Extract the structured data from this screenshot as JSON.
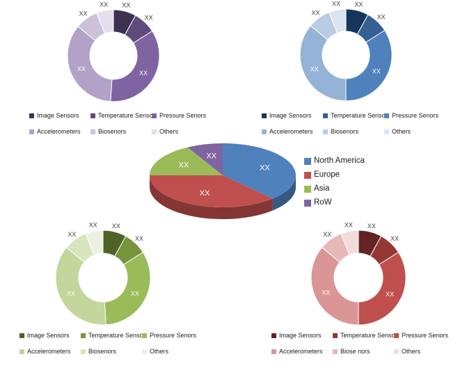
{
  "label_style": {
    "inside_color": "#ffffff",
    "outside_color": "#404040"
  },
  "chart_data": [
    {
      "id": "top_left",
      "type": "donut",
      "palette": "purple",
      "categories": [
        "Image Sensors",
        "Temperature Sensor",
        "Pressure Senors",
        "Accelerometers",
        "Biosenors",
        "Others"
      ],
      "values": [
        8,
        8,
        35,
        35,
        8,
        6
      ],
      "data_labels": [
        "XX",
        "XX",
        "XX",
        "XX",
        "XX",
        "XX"
      ],
      "colors": [
        "#3f3151",
        "#604a7b",
        "#8064a2",
        "#b2a2c7",
        "#ccc1d9",
        "#e5dfec"
      ],
      "legend_position": "bottom"
    },
    {
      "id": "top_right",
      "type": "donut",
      "palette": "blue",
      "categories": [
        "Image Sensors",
        "Temperature Sensor",
        "Pressure Senors",
        "Accelerometers",
        "Biosenors",
        "Others"
      ],
      "values": [
        8,
        8,
        34,
        36,
        8,
        6
      ],
      "data_labels": [
        "XX",
        "XX",
        "XX",
        "XX",
        "XX",
        "XX"
      ],
      "colors": [
        "#17365d",
        "#366092",
        "#4f81bd",
        "#95b3d7",
        "#b8cce4",
        "#dce6f1"
      ],
      "legend_position": "bottom"
    },
    {
      "id": "center",
      "type": "pie3d",
      "categories": [
        "North America",
        "Europe",
        "Asia",
        "RoW"
      ],
      "values": [
        38,
        37,
        17,
        8
      ],
      "data_labels": [
        "XX",
        "XX",
        "XX",
        "XX"
      ],
      "colors": [
        "#4f81bd",
        "#c0504d",
        "#9bbb59",
        "#8064a2"
      ],
      "legend_position": "right"
    },
    {
      "id": "bottom_left",
      "type": "donut",
      "palette": "green",
      "categories": [
        "Image Sensors",
        "Temperature Sensor",
        "Pressure Senors",
        "Accelerometers",
        "Biosenors",
        "Others"
      ],
      "values": [
        8,
        8,
        33,
        37,
        8,
        6
      ],
      "data_labels": [
        "XX",
        "XX",
        "XX",
        "XX",
        "XX",
        "XX"
      ],
      "colors": [
        "#4f6228",
        "#77933c",
        "#9bbb59",
        "#c3d69b",
        "#d7e4bd",
        "#ebf1de"
      ],
      "legend_position": "bottom"
    },
    {
      "id": "bottom_right",
      "type": "donut",
      "palette": "red",
      "categories": [
        "Image Sensors",
        "Temperature Sensor",
        "Pressure Senors",
        "Accelerometers",
        "Biose nors",
        "Others"
      ],
      "values": [
        8,
        8,
        34,
        36,
        8,
        6
      ],
      "data_labels": [
        "XX",
        "XX",
        "XX",
        "XX",
        "XX",
        "XX"
      ],
      "colors": [
        "#632423",
        "#953735",
        "#c0504d",
        "#d99694",
        "#e6b9b8",
        "#f2dcdb"
      ],
      "legend_position": "bottom"
    }
  ]
}
